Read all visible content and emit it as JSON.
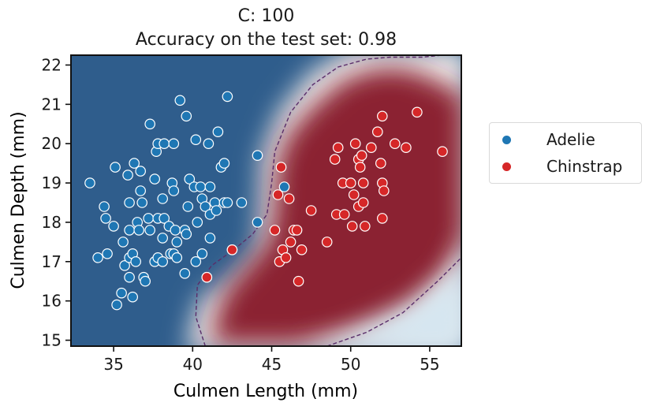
{
  "colors": {
    "adelie": "#1f77b4",
    "chinstrap": "#d62728",
    "contour": "#5a2e6a",
    "region_blue": "#2f5d8c",
    "region_red": "#8b2332"
  },
  "chart_data": {
    "type": "scatter",
    "title": "C: 100",
    "subtitle": "Accuracy on the test set: 0.98",
    "xlabel": "Culmen Length (mm)",
    "ylabel": "Culmen Depth (mm)",
    "xlim": [
      32.3,
      57.0
    ],
    "ylim": [
      14.85,
      22.25
    ],
    "xticks": [
      35,
      40,
      45,
      50,
      55
    ],
    "yticks": [
      15,
      16,
      17,
      18,
      19,
      20,
      21,
      22
    ],
    "grid": false,
    "legend_placement": "outside-right",
    "background": "decision function heatmap (blue = Adelie, red = Chinstrap) with dashed margin contours",
    "series": [
      {
        "name": "Adelie",
        "color": "#1f77b4",
        "points": [
          [
            33.5,
            19.0
          ],
          [
            34.0,
            17.1
          ],
          [
            34.4,
            18.4
          ],
          [
            34.5,
            18.1
          ],
          [
            34.6,
            17.2
          ],
          [
            35.0,
            17.9
          ],
          [
            35.1,
            19.4
          ],
          [
            35.2,
            15.9
          ],
          [
            35.5,
            16.2
          ],
          [
            35.6,
            17.5
          ],
          [
            35.7,
            16.9
          ],
          [
            35.9,
            19.2
          ],
          [
            36.0,
            18.5
          ],
          [
            36.0,
            17.8
          ],
          [
            36.0,
            17.1
          ],
          [
            36.0,
            16.6
          ],
          [
            36.2,
            17.2
          ],
          [
            36.2,
            16.1
          ],
          [
            36.3,
            19.5
          ],
          [
            36.4,
            17.0
          ],
          [
            36.5,
            18.0
          ],
          [
            36.6,
            17.8
          ],
          [
            36.7,
            19.3
          ],
          [
            36.7,
            18.8
          ],
          [
            36.8,
            18.5
          ],
          [
            36.9,
            16.6
          ],
          [
            37.0,
            16.5
          ],
          [
            37.2,
            18.1
          ],
          [
            37.3,
            17.8
          ],
          [
            37.3,
            20.5
          ],
          [
            37.6,
            19.1
          ],
          [
            37.6,
            17.0
          ],
          [
            37.7,
            19.8
          ],
          [
            37.8,
            18.1
          ],
          [
            37.8,
            17.1
          ],
          [
            37.8,
            20.0
          ],
          [
            38.1,
            18.6
          ],
          [
            38.1,
            17.6
          ],
          [
            38.1,
            17.0
          ],
          [
            38.2,
            20.0
          ],
          [
            38.2,
            18.1
          ],
          [
            38.5,
            17.9
          ],
          [
            38.6,
            17.2
          ],
          [
            38.7,
            19.0
          ],
          [
            38.8,
            20.0
          ],
          [
            38.8,
            17.2
          ],
          [
            38.8,
            18.8
          ],
          [
            38.9,
            17.8
          ],
          [
            39.0,
            17.1
          ],
          [
            39.0,
            17.5
          ],
          [
            39.2,
            21.1
          ],
          [
            39.5,
            17.8
          ],
          [
            39.5,
            16.7
          ],
          [
            39.6,
            20.7
          ],
          [
            39.6,
            17.7
          ],
          [
            39.7,
            18.4
          ],
          [
            39.8,
            19.1
          ],
          [
            40.1,
            18.9
          ],
          [
            40.2,
            17.0
          ],
          [
            40.2,
            20.1
          ],
          [
            40.3,
            18.0
          ],
          [
            40.5,
            18.9
          ],
          [
            40.6,
            17.2
          ],
          [
            40.6,
            18.6
          ],
          [
            40.8,
            18.4
          ],
          [
            40.9,
            16.6
          ],
          [
            41.0,
            20.0
          ],
          [
            41.1,
            18.9
          ],
          [
            41.1,
            17.6
          ],
          [
            41.1,
            18.2
          ],
          [
            41.4,
            18.5
          ],
          [
            41.5,
            18.3
          ],
          [
            41.6,
            20.3
          ],
          [
            41.8,
            19.4
          ],
          [
            42.0,
            19.5
          ],
          [
            42.0,
            18.5
          ],
          [
            42.2,
            21.2
          ],
          [
            42.2,
            18.5
          ],
          [
            42.5,
            17.3
          ],
          [
            43.1,
            18.5
          ],
          [
            44.1,
            18.0
          ],
          [
            44.1,
            19.7
          ],
          [
            45.8,
            18.9
          ]
        ]
      },
      {
        "name": "Chinstrap",
        "color": "#d62728",
        "points": [
          [
            40.9,
            16.6
          ],
          [
            42.5,
            17.3
          ],
          [
            45.2,
            17.8
          ],
          [
            45.4,
            18.7
          ],
          [
            45.5,
            17.0
          ],
          [
            45.6,
            19.4
          ],
          [
            45.7,
            17.3
          ],
          [
            45.9,
            17.1
          ],
          [
            46.1,
            18.6
          ],
          [
            46.2,
            17.5
          ],
          [
            46.4,
            17.8
          ],
          [
            46.6,
            17.8
          ],
          [
            46.7,
            16.5
          ],
          [
            46.9,
            17.3
          ],
          [
            47.5,
            18.3
          ],
          [
            48.5,
            17.5
          ],
          [
            49.0,
            19.6
          ],
          [
            49.1,
            18.2
          ],
          [
            49.2,
            19.9
          ],
          [
            49.5,
            19.0
          ],
          [
            49.6,
            18.2
          ],
          [
            50.0,
            19.0
          ],
          [
            50.1,
            17.9
          ],
          [
            50.2,
            18.7
          ],
          [
            50.3,
            20.0
          ],
          [
            50.5,
            18.4
          ],
          [
            50.5,
            19.6
          ],
          [
            50.6,
            19.4
          ],
          [
            50.7,
            19.7
          ],
          [
            50.8,
            19.0
          ],
          [
            50.8,
            18.5
          ],
          [
            50.9,
            17.9
          ],
          [
            51.3,
            19.9
          ],
          [
            51.7,
            20.3
          ],
          [
            51.9,
            19.5
          ],
          [
            52.0,
            18.1
          ],
          [
            52.0,
            19.0
          ],
          [
            52.0,
            20.7
          ],
          [
            52.1,
            18.8
          ],
          [
            52.8,
            20.0
          ],
          [
            53.5,
            19.9
          ],
          [
            54.2,
            20.8
          ],
          [
            55.8,
            19.8
          ]
        ]
      }
    ]
  }
}
